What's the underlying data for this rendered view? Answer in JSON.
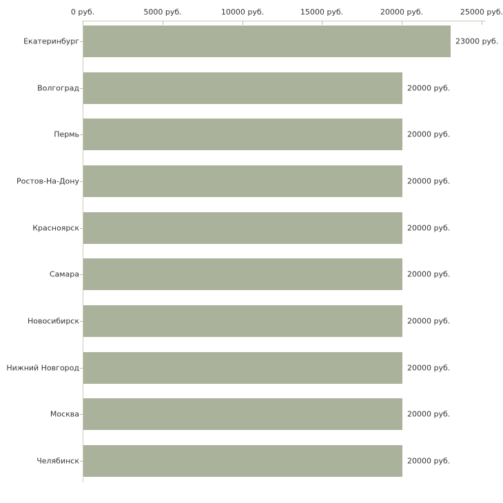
{
  "chart_data": {
    "type": "bar",
    "orientation": "horizontal",
    "title": "",
    "xlabel": "",
    "ylabel": "",
    "unit": "руб.",
    "categories": [
      "Екатеринбург",
      "Волгоград",
      "Пермь",
      "Ростов-На-Дону",
      "Красноярск",
      "Самара",
      "Новосибирск",
      "Нижний Новгород",
      "Москва",
      "Челябинск"
    ],
    "values": [
      23000,
      20000,
      20000,
      20000,
      20000,
      20000,
      20000,
      20000,
      20000,
      20000
    ],
    "value_labels": [
      "23000 руб.",
      "20000 руб.",
      "20000 руб.",
      "20000 руб.",
      "20000 руб.",
      "20000 руб.",
      "20000 руб.",
      "20000 руб.",
      "20000 руб.",
      "20000 руб."
    ],
    "x_axis": {
      "position": "top",
      "range": [
        0,
        25000
      ],
      "ticks": [
        0,
        5000,
        10000,
        15000,
        20000,
        25000
      ],
      "tick_labels": [
        "0 руб.",
        "5000 руб.",
        "10000 руб.",
        "15000 руб.",
        "20000 руб.",
        "25000 руб."
      ]
    },
    "grid": false,
    "legend": false,
    "colors": {
      "bar": "#abb29b",
      "axis_line": "#c9c9b4",
      "tick_mark": "#b9b9a6",
      "text": "#333333"
    }
  }
}
